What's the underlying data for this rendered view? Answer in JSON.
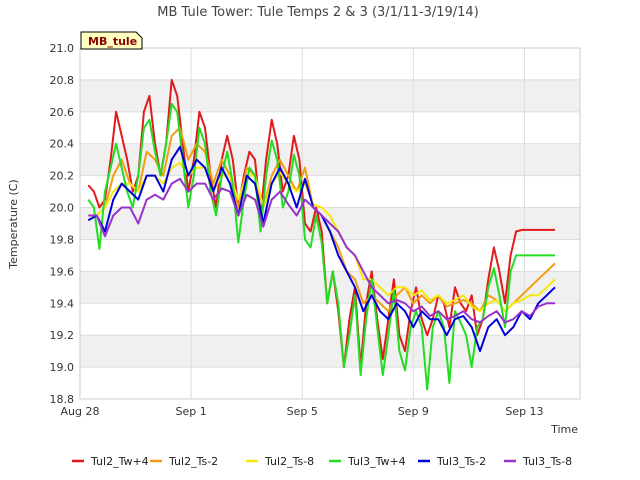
{
  "chart_data": {
    "type": "line",
    "title": "MB Tule Tower: Tule Temps 2 & 3 (3/1/11-3/19/14)",
    "badge": "MB_tule",
    "xlabel": "Time",
    "ylabel": "Temperature (C)",
    "xlim": [
      0,
      18
    ],
    "ylim": [
      18.8,
      21.0
    ],
    "xticks": [
      {
        "pos": 0,
        "label": "Aug 28"
      },
      {
        "pos": 4,
        "label": "Sep 1"
      },
      {
        "pos": 8,
        "label": "Sep 5"
      },
      {
        "pos": 12,
        "label": "Sep 9"
      },
      {
        "pos": 16,
        "label": "Sep 13"
      }
    ],
    "yticks": [
      18.8,
      19.0,
      19.2,
      19.4,
      19.6,
      19.8,
      20.0,
      20.2,
      20.4,
      20.6,
      20.8,
      21.0
    ],
    "legend_position": "bottom",
    "series": [
      {
        "name": "Tul2_Tw+4",
        "color": "#e31a1c",
        "x": [
          0.3,
          0.5,
          0.7,
          0.9,
          1.1,
          1.3,
          1.5,
          1.7,
          1.9,
          2.1,
          2.3,
          2.5,
          2.7,
          2.9,
          3.1,
          3.3,
          3.5,
          3.7,
          3.9,
          4.1,
          4.3,
          4.5,
          4.7,
          4.9,
          5.1,
          5.3,
          5.5,
          5.7,
          5.9,
          6.1,
          6.3,
          6.5,
          6.7,
          6.9,
          7.1,
          7.3,
          7.5,
          7.7,
          7.9,
          8.1,
          8.3,
          8.5,
          8.7,
          8.9,
          9.1,
          9.3,
          9.5,
          9.7,
          9.9,
          10.1,
          10.3,
          10.5,
          10.7,
          10.9,
          11.1,
          11.3,
          11.5,
          11.7,
          11.9,
          12.1,
          12.3,
          12.5,
          12.7,
          12.9,
          13.1,
          13.3,
          13.5,
          13.7,
          13.9,
          14.1,
          14.3,
          14.5,
          14.7,
          14.9,
          15.1,
          15.3,
          15.5,
          15.7,
          15.9,
          16.1,
          16.3,
          16.5,
          16.7,
          16.9,
          17.1
        ],
        "values": [
          20.14,
          20.1,
          20.0,
          20.05,
          20.3,
          20.6,
          20.45,
          20.3,
          20.1,
          20.2,
          20.6,
          20.7,
          20.4,
          20.2,
          20.4,
          20.8,
          20.7,
          20.4,
          20.1,
          20.3,
          20.6,
          20.5,
          20.2,
          20.0,
          20.3,
          20.45,
          20.3,
          20.0,
          20.2,
          20.35,
          20.3,
          19.95,
          20.3,
          20.55,
          20.4,
          20.1,
          20.2,
          20.45,
          20.3,
          19.9,
          19.85,
          20.0,
          19.85,
          19.4,
          19.6,
          19.35,
          19.0,
          19.3,
          19.5,
          19.0,
          19.4,
          19.6,
          19.3,
          19.05,
          19.3,
          19.55,
          19.2,
          19.1,
          19.35,
          19.5,
          19.3,
          19.2,
          19.3,
          19.45,
          19.4,
          19.25,
          19.5,
          19.4,
          19.35,
          19.45,
          19.2,
          19.3,
          19.55,
          19.75,
          19.6,
          19.4,
          19.7,
          19.85,
          19.86,
          19.86,
          19.86,
          19.86,
          19.86,
          19.86,
          19.86
        ]
      },
      {
        "name": "Tul2_Ts-2",
        "color": "#f39c12",
        "x": [
          0.3,
          0.6,
          0.9,
          1.2,
          1.5,
          1.8,
          2.1,
          2.4,
          2.7,
          3.0,
          3.3,
          3.6,
          3.9,
          4.2,
          4.5,
          4.8,
          5.1,
          5.4,
          5.7,
          6.0,
          6.3,
          6.6,
          6.9,
          7.2,
          7.5,
          7.8,
          8.1,
          8.4,
          8.7,
          9.0,
          9.3,
          9.6,
          9.9,
          10.2,
          10.5,
          10.8,
          11.1,
          11.4,
          11.7,
          12.0,
          12.3,
          12.6,
          12.9,
          13.2,
          13.5,
          13.8,
          14.1,
          14.4,
          14.7,
          15.0,
          15.3,
          15.6,
          15.9,
          16.2,
          16.5,
          16.8,
          17.1
        ],
        "values": [
          19.95,
          19.95,
          20.0,
          20.2,
          20.3,
          20.15,
          20.1,
          20.35,
          20.3,
          20.2,
          20.45,
          20.5,
          20.3,
          20.4,
          20.35,
          20.15,
          20.3,
          20.2,
          20.0,
          20.25,
          20.2,
          20.0,
          20.2,
          20.3,
          20.2,
          20.1,
          20.25,
          20.0,
          19.95,
          19.85,
          19.75,
          19.6,
          19.55,
          19.4,
          19.45,
          19.4,
          19.35,
          19.45,
          19.5,
          19.4,
          19.45,
          19.4,
          19.45,
          19.38,
          19.4,
          19.42,
          19.4,
          19.35,
          19.45,
          19.42,
          19.35,
          19.4,
          19.45,
          19.5,
          19.55,
          19.6,
          19.65
        ]
      },
      {
        "name": "Tul2_Ts-8",
        "color": "#f5e80c",
        "x": [
          0.3,
          0.6,
          0.9,
          1.2,
          1.5,
          1.8,
          2.1,
          2.4,
          2.7,
          3.0,
          3.3,
          3.6,
          3.9,
          4.2,
          4.5,
          4.8,
          5.1,
          5.4,
          5.7,
          6.0,
          6.3,
          6.6,
          6.9,
          7.2,
          7.5,
          7.8,
          8.1,
          8.4,
          8.7,
          9.0,
          9.3,
          9.6,
          9.9,
          10.2,
          10.5,
          10.8,
          11.1,
          11.4,
          11.7,
          12.0,
          12.3,
          12.6,
          12.9,
          13.2,
          13.5,
          13.8,
          14.1,
          14.4,
          14.7,
          15.0,
          15.3,
          15.6,
          15.9,
          16.2,
          16.5,
          16.8,
          17.1
        ],
        "values": [
          19.95,
          19.95,
          20.0,
          20.1,
          20.15,
          20.15,
          20.1,
          20.2,
          20.2,
          20.15,
          20.25,
          20.28,
          20.2,
          20.25,
          20.25,
          20.1,
          20.2,
          20.2,
          20.05,
          20.2,
          20.2,
          20.0,
          20.15,
          20.22,
          20.15,
          20.1,
          20.15,
          20.02,
          20.0,
          19.95,
          19.85,
          19.75,
          19.7,
          19.55,
          19.55,
          19.5,
          19.45,
          19.5,
          19.5,
          19.45,
          19.48,
          19.42,
          19.45,
          19.4,
          19.42,
          19.45,
          19.38,
          19.35,
          19.4,
          19.42,
          19.35,
          19.4,
          19.42,
          19.45,
          19.45,
          19.5,
          19.55
        ]
      },
      {
        "name": "Tul3_Tw+4",
        "color": "#22dd22",
        "x": [
          0.3,
          0.5,
          0.7,
          0.9,
          1.1,
          1.3,
          1.5,
          1.7,
          1.9,
          2.1,
          2.3,
          2.5,
          2.7,
          2.9,
          3.1,
          3.3,
          3.5,
          3.7,
          3.9,
          4.1,
          4.3,
          4.5,
          4.7,
          4.9,
          5.1,
          5.3,
          5.5,
          5.7,
          5.9,
          6.1,
          6.3,
          6.5,
          6.7,
          6.9,
          7.1,
          7.3,
          7.5,
          7.7,
          7.9,
          8.1,
          8.3,
          8.5,
          8.7,
          8.9,
          9.1,
          9.3,
          9.5,
          9.7,
          9.9,
          10.1,
          10.3,
          10.5,
          10.7,
          10.9,
          11.1,
          11.3,
          11.5,
          11.7,
          11.9,
          12.1,
          12.3,
          12.5,
          12.7,
          12.9,
          13.1,
          13.3,
          13.5,
          13.7,
          13.9,
          14.1,
          14.3,
          14.5,
          14.7,
          14.9,
          15.1,
          15.3,
          15.5,
          15.7,
          15.9,
          16.1,
          16.3,
          16.5,
          16.7,
          16.9,
          17.1
        ],
        "values": [
          20.05,
          20.0,
          19.74,
          20.1,
          20.25,
          20.4,
          20.25,
          20.1,
          20.0,
          20.2,
          20.5,
          20.55,
          20.35,
          20.2,
          20.4,
          20.65,
          20.6,
          20.3,
          20.0,
          20.2,
          20.5,
          20.4,
          20.1,
          19.95,
          20.2,
          20.35,
          20.15,
          19.78,
          20.05,
          20.25,
          20.2,
          19.85,
          20.2,
          20.42,
          20.3,
          20.0,
          20.1,
          20.33,
          20.2,
          19.8,
          19.75,
          19.95,
          19.78,
          19.4,
          19.6,
          19.4,
          19.0,
          19.2,
          19.45,
          18.95,
          19.3,
          19.55,
          19.25,
          18.95,
          19.2,
          19.48,
          19.1,
          18.98,
          19.25,
          19.35,
          19.25,
          18.86,
          19.25,
          19.35,
          19.25,
          18.9,
          19.35,
          19.28,
          19.2,
          19.0,
          19.25,
          19.3,
          19.5,
          19.62,
          19.45,
          19.25,
          19.6,
          19.7,
          19.7,
          19.7,
          19.7,
          19.7,
          19.7,
          19.7,
          19.7
        ]
      },
      {
        "name": "Tul3_Ts-2",
        "color": "#0000dd",
        "x": [
          0.3,
          0.6,
          0.9,
          1.2,
          1.5,
          1.8,
          2.1,
          2.4,
          2.7,
          3.0,
          3.3,
          3.6,
          3.9,
          4.2,
          4.5,
          4.8,
          5.1,
          5.4,
          5.7,
          6.0,
          6.3,
          6.6,
          6.9,
          7.2,
          7.5,
          7.8,
          8.1,
          8.4,
          8.7,
          9.0,
          9.3,
          9.6,
          9.9,
          10.2,
          10.5,
          10.8,
          11.1,
          11.4,
          11.7,
          12.0,
          12.3,
          12.6,
          12.9,
          13.2,
          13.5,
          13.8,
          14.1,
          14.4,
          14.7,
          15.0,
          15.3,
          15.6,
          15.9,
          16.2,
          16.5,
          16.8,
          17.1
        ],
        "values": [
          19.92,
          19.95,
          19.85,
          20.05,
          20.15,
          20.1,
          20.05,
          20.2,
          20.2,
          20.1,
          20.3,
          20.38,
          20.2,
          20.3,
          20.25,
          20.1,
          20.25,
          20.15,
          19.95,
          20.2,
          20.15,
          19.9,
          20.15,
          20.25,
          20.15,
          20.0,
          20.18,
          20.0,
          19.95,
          19.85,
          19.7,
          19.6,
          19.5,
          19.35,
          19.45,
          19.35,
          19.3,
          19.4,
          19.35,
          19.25,
          19.35,
          19.3,
          19.3,
          19.2,
          19.3,
          19.32,
          19.25,
          19.1,
          19.25,
          19.3,
          19.2,
          19.25,
          19.35,
          19.3,
          19.4,
          19.45,
          19.5
        ]
      },
      {
        "name": "Tul3_Ts-8",
        "color": "#9932cc",
        "x": [
          0.3,
          0.6,
          0.9,
          1.2,
          1.5,
          1.8,
          2.1,
          2.4,
          2.7,
          3.0,
          3.3,
          3.6,
          3.9,
          4.2,
          4.5,
          4.8,
          5.1,
          5.4,
          5.7,
          6.0,
          6.3,
          6.6,
          6.9,
          7.2,
          7.5,
          7.8,
          8.1,
          8.4,
          8.7,
          9.0,
          9.3,
          9.6,
          9.9,
          10.2,
          10.5,
          10.8,
          11.1,
          11.4,
          11.7,
          12.0,
          12.3,
          12.6,
          12.9,
          13.2,
          13.5,
          13.8,
          14.1,
          14.4,
          14.7,
          15.0,
          15.3,
          15.6,
          15.9,
          16.2,
          16.5,
          16.8,
          17.1
        ],
        "values": [
          19.95,
          19.95,
          19.82,
          19.95,
          20.0,
          20.0,
          19.9,
          20.05,
          20.08,
          20.05,
          20.15,
          20.18,
          20.1,
          20.15,
          20.15,
          20.05,
          20.12,
          20.1,
          19.95,
          20.08,
          20.05,
          19.88,
          20.05,
          20.1,
          20.02,
          19.95,
          20.05,
          20.0,
          19.95,
          19.9,
          19.85,
          19.75,
          19.7,
          19.6,
          19.5,
          19.45,
          19.4,
          19.42,
          19.4,
          19.35,
          19.38,
          19.32,
          19.35,
          19.3,
          19.32,
          19.35,
          19.3,
          19.28,
          19.32,
          19.35,
          19.28,
          19.3,
          19.35,
          19.32,
          19.38,
          19.4,
          19.4
        ]
      }
    ]
  }
}
